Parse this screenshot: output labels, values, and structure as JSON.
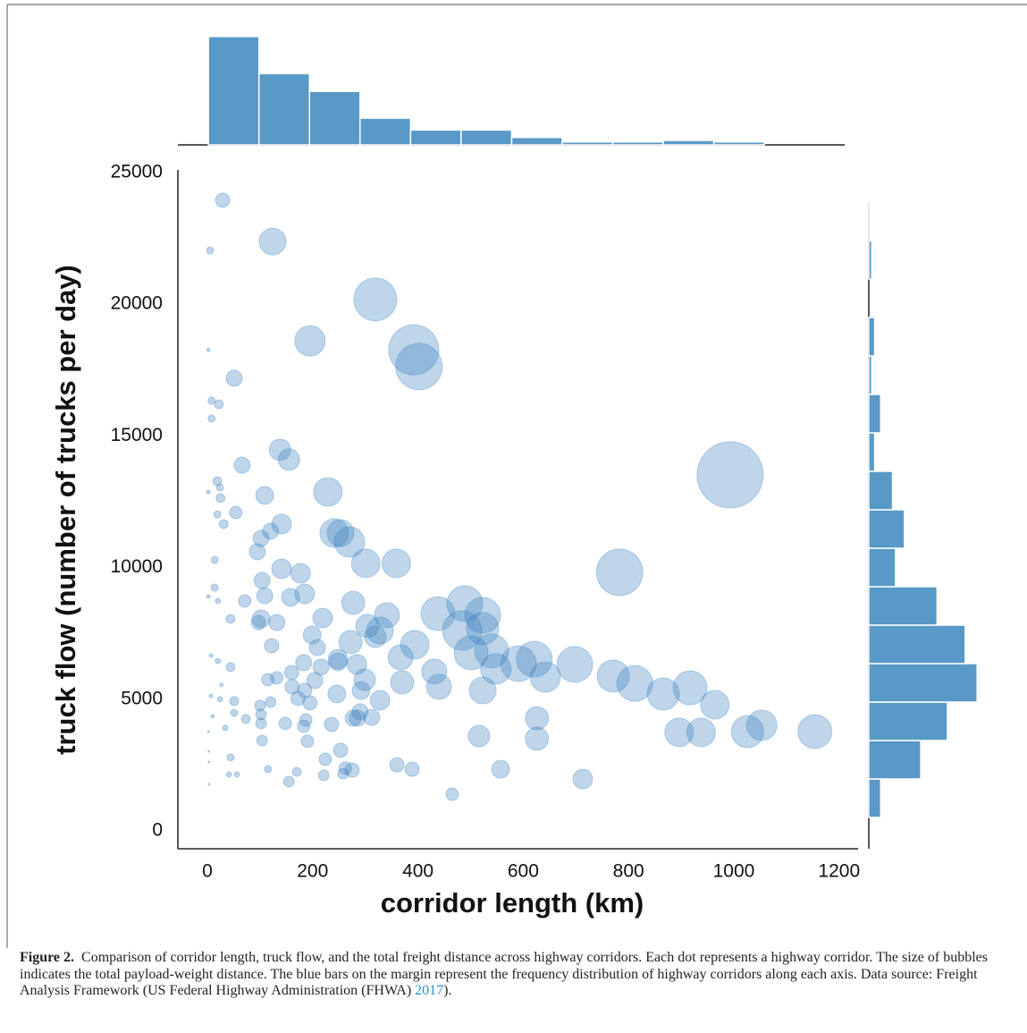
{
  "chart_data": [
    {
      "type": "scatter",
      "xlabel": "corridor length (km)",
      "ylabel": "truck flow (number of trucks per day)",
      "color": "#3a7fbf",
      "opacity": 0.33,
      "xlim": [
        -56,
        1236
      ],
      "ylim": [
        -680,
        25100
      ],
      "xticks": [
        0,
        200,
        400,
        600,
        800,
        1000,
        1200
      ],
      "yticks": [
        0,
        5000,
        10000,
        15000,
        20000,
        25000
      ],
      "x": [
        29,
        124,
        5,
        319,
        195,
        392,
        402,
        51,
        2,
        8,
        22,
        8,
        138,
        155,
        66,
        229,
        19,
        24,
        25,
        2,
        109,
        993,
        54,
        19,
        31,
        141,
        120,
        241,
        253,
        270,
        102,
        301,
        359,
        95,
        783,
        141,
        177,
        14,
        104,
        158,
        14,
        185,
        109,
        20,
        71,
        277,
        2,
        489,
        438,
        523,
        341,
        102,
        219,
        97,
        132,
        44,
        304,
        484,
        328,
        523,
        394,
        199,
        122,
        272,
        319,
        501,
        540,
        367,
        621,
        591,
        698,
        548,
        209,
        248,
        248,
        284,
        183,
        7,
        20,
        44,
        431,
        642,
        160,
        216,
        299,
        370,
        440,
        523,
        771,
        812,
        866,
        917,
        964,
        204,
        132,
        246,
        292,
        115,
        161,
        172,
        185,
        195,
        290,
        328,
        27,
        7,
        24,
        51,
        100,
        120,
        10,
        51,
        73,
        102,
        102,
        148,
        187,
        183,
        236,
        277,
        285,
        312,
        626,
        626,
        516,
        896,
        938,
        1026,
        1053,
        1154,
        2,
        34,
        104,
        190,
        253,
        3,
        44,
        224,
        262,
        275,
        360,
        389,
        557,
        115,
        170,
        221,
        258,
        41,
        56,
        713,
        3,
        155,
        465,
        3
      ],
      "values": [
        23950,
        22380,
        22040,
        20180,
        18610,
        18270,
        17630,
        17190,
        18270,
        16340,
        16200,
        15660,
        14470,
        14100,
        13890,
        12870,
        13280,
        13040,
        12640,
        12870,
        12740,
        13520,
        12090,
        12020,
        11650,
        11650,
        11380,
        11310,
        11310,
        10970,
        11110,
        10160,
        10160,
        10600,
        9820,
        9950,
        9780,
        10290,
        9510,
        8870,
        9240,
        9000,
        8930,
        8730,
        8730,
        8660,
        8900,
        8630,
        8250,
        8190,
        8190,
        8050,
        8080,
        7910,
        7910,
        8050,
        7780,
        7610,
        7610,
        7680,
        7070,
        7440,
        7030,
        7170,
        7370,
        6760,
        6830,
        6590,
        6520,
        6350,
        6320,
        6150,
        6960,
        6520,
        6420,
        6320,
        6390,
        6660,
        6450,
        6220,
        6050,
        5840,
        6010,
        6220,
        5740,
        5640,
        5470,
        5330,
        5880,
        5600,
        5200,
        5430,
        4790,
        5710,
        5810,
        5200,
        5330,
        5740,
        5470,
        5030,
        5330,
        4860,
        4520,
        4960,
        5540,
        5130,
        5000,
        4930,
        4760,
        4890,
        4350,
        4480,
        4250,
        4420,
        4080,
        4080,
        4210,
        3970,
        4040,
        4280,
        4280,
        4310,
        4280,
        3500,
        3600,
        3740,
        3740,
        3770,
        4010,
        3770,
        3770,
        3910,
        3430,
        3400,
        3060,
        3020,
        2790,
        2720,
        2380,
        2310,
        2510,
        2340,
        2340,
        2340,
        2240,
        2110,
        2170,
        2140,
        2140,
        1970,
        1770,
        1870,
        1390,
        2620
      ],
      "sizes": [
        8,
        15,
        4,
        24,
        17,
        28,
        26,
        9,
        2,
        4,
        5,
        4,
        12,
        12,
        9,
        16,
        5,
        4,
        5,
        2,
        10,
        37,
        7,
        4,
        5,
        11,
        9,
        16,
        15,
        17,
        9,
        16,
        16,
        9,
        26,
        11,
        11,
        4,
        9,
        10,
        4,
        11,
        9,
        3,
        7,
        13,
        2,
        20,
        19,
        20,
        14,
        10,
        11,
        8,
        9,
        5,
        13,
        22,
        15,
        18,
        16,
        10,
        8,
        13,
        12,
        19,
        19,
        14,
        20,
        20,
        20,
        17,
        9,
        11,
        10,
        11,
        9,
        2,
        3,
        5,
        14,
        17,
        8,
        9,
        12,
        13,
        14,
        15,
        18,
        20,
        18,
        19,
        16,
        9,
        7,
        10,
        10,
        7,
        8,
        8,
        8,
        8,
        9,
        11,
        2,
        2,
        3,
        5,
        6,
        6,
        2,
        4,
        5,
        6,
        6,
        7,
        7,
        7,
        8,
        9,
        9,
        9,
        13,
        13,
        12,
        16,
        16,
        18,
        17,
        19,
        1,
        3,
        6,
        7,
        8,
        1,
        4,
        7,
        7,
        8,
        8,
        8,
        10,
        4,
        5,
        6,
        6,
        3,
        3,
        11,
        1,
        6,
        7,
        1
      ]
    },
    {
      "type": "histogram",
      "orientation": "vertical",
      "color": "#5899c8",
      "bins": [
        2,
        98,
        194,
        290,
        386,
        482,
        578,
        674,
        770,
        866,
        962,
        1058
      ],
      "values": [
        73,
        48,
        36,
        18,
        10,
        10,
        5,
        2,
        2,
        3,
        2
      ],
      "ylim": [
        0,
        75
      ]
    },
    {
      "type": "histogram",
      "orientation": "horizontal",
      "color": "#5899c8",
      "bins": [
        510,
        1970,
        3431,
        4891,
        6352,
        7813,
        9273,
        10734,
        12194,
        13655,
        15115,
        16576,
        18037,
        19497,
        20958,
        22418,
        23879
      ],
      "values": [
        8,
        35,
        53,
        73,
        65,
        46,
        18,
        24,
        16,
        4,
        8,
        2,
        4,
        0,
        2,
        1
      ],
      "xlim": [
        0,
        75
      ]
    }
  ],
  "caption": {
    "label": "Figure 2.",
    "text": "Comparison of corridor length, truck flow, and the total freight distance across highway corridors. Each dot represents a highway corridor. The size of bubbles indicates the total payload-weight distance. The blue bars on the margin represent the frequency distribution of highway corridors along each axis. Data source: Freight Analysis Framework (US Federal Highway Administration (FHWA) ",
    "year": "2017",
    "end": ")."
  }
}
